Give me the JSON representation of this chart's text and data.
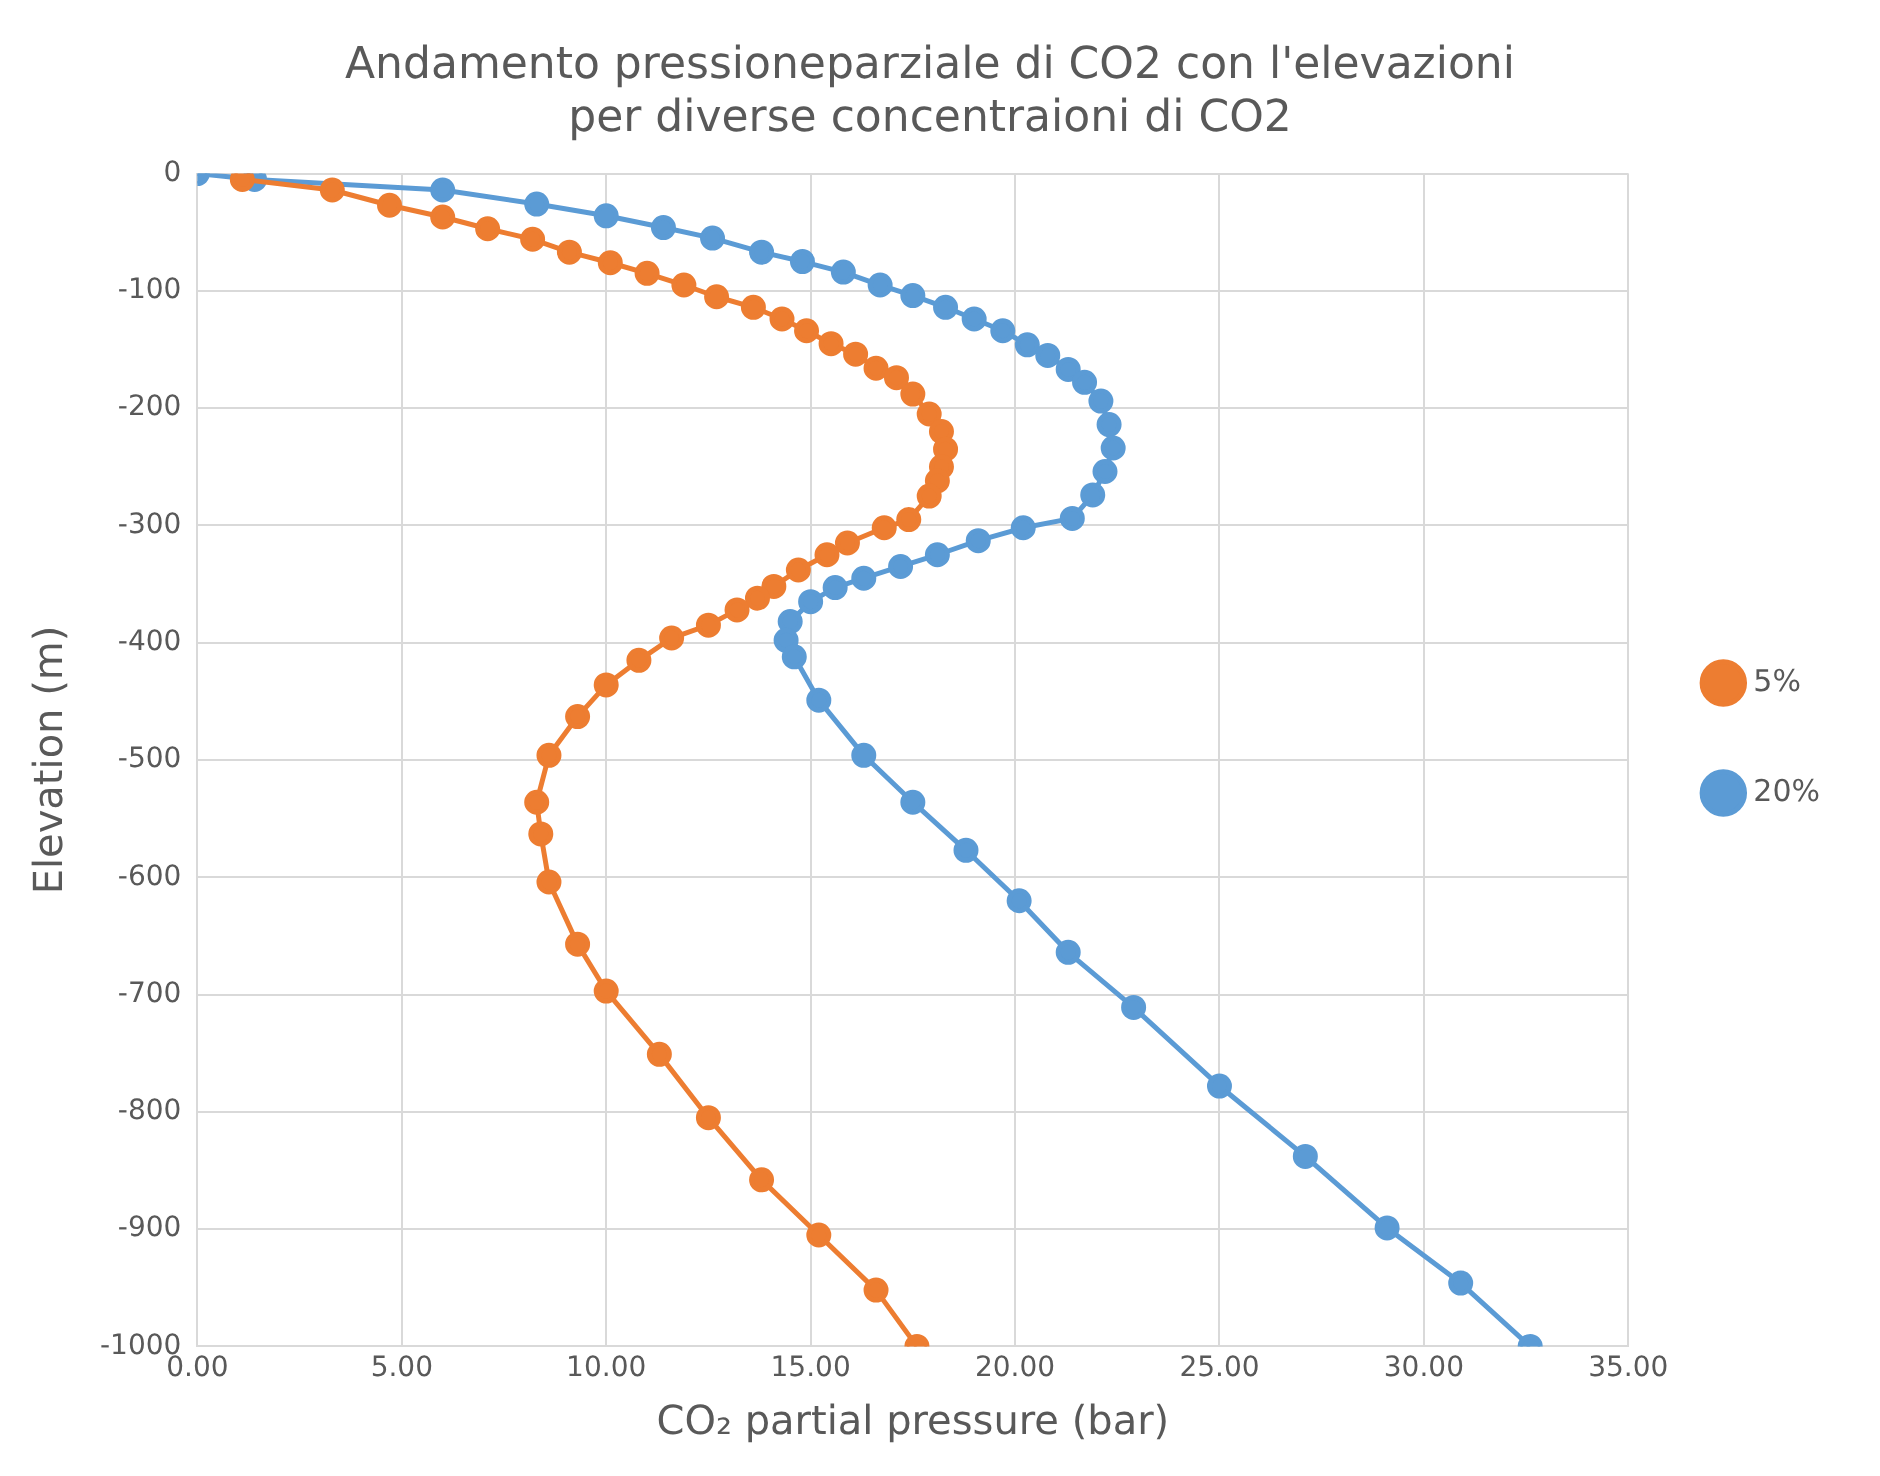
{
  "chart_data": {
    "type": "line",
    "title": "Andamento pressioneparziale di CO2 con l'elevazioni\nper diverse concentraioni di CO2",
    "xlabel": "CO₂ partial pressure (bar)",
    "ylabel": "Elevation (m)",
    "xlim": [
      0,
      35
    ],
    "xticks": [
      {
        "value": 0,
        "label": "0.00"
      },
      {
        "value": 5,
        "label": "5.00"
      },
      {
        "value": 10,
        "label": "10.00"
      },
      {
        "value": 15,
        "label": "15.00"
      },
      {
        "value": 20,
        "label": "20.00"
      },
      {
        "value": 25,
        "label": "25.00"
      },
      {
        "value": 30,
        "label": "30.00"
      },
      {
        "value": 35,
        "label": "35.00"
      }
    ],
    "ylim": [
      -1000,
      0
    ],
    "yticks": [
      0,
      -100,
      -200,
      -300,
      -400,
      -500,
      -600,
      -700,
      -800,
      -900,
      -1000
    ],
    "grid": true,
    "legend": "right",
    "marker": "circle",
    "line_style": "solid",
    "series": [
      {
        "name": "5%",
        "color": "#ed7d31",
        "x": [
          1.1,
          3.3,
          4.7,
          6.0,
          7.1,
          8.2,
          9.1,
          10.1,
          11.0,
          11.9,
          12.7,
          13.6,
          14.3,
          14.9,
          15.5,
          16.1,
          16.6,
          17.1,
          17.5,
          17.9,
          18.2,
          18.3,
          18.2,
          18.1,
          17.9,
          17.4,
          16.8,
          15.9,
          15.4,
          14.7,
          14.1,
          13.7,
          13.2,
          12.5,
          11.6,
          10.8,
          10.0,
          9.3,
          8.6,
          8.3,
          8.4,
          8.6,
          9.3,
          10.0,
          11.3,
          12.5,
          13.8,
          15.2,
          16.6,
          17.6
        ],
        "values": [
          -5,
          -14,
          -27,
          -37,
          -47,
          -56,
          -67,
          -76,
          -85,
          -95,
          -105,
          -114,
          -124,
          -134,
          -145,
          -154,
          -166,
          -174,
          -188,
          -205,
          -220,
          -235,
          -250,
          -262,
          -275,
          -295,
          -302,
          -315,
          -325,
          -338,
          -352,
          -362,
          -372,
          -385,
          -396,
          -415,
          -436,
          -463,
          -496,
          -536,
          -563,
          -604,
          -657,
          -697,
          -751,
          -805,
          -858,
          -905,
          -952,
          -1000
        ]
      },
      {
        "name": "20%",
        "color": "#5b9bd5",
        "x": [
          0,
          1.4,
          6.0,
          8.3,
          10.0,
          11.4,
          12.6,
          13.8,
          14.8,
          15.8,
          16.7,
          17.5,
          18.3,
          19.0,
          19.7,
          20.3,
          20.8,
          21.3,
          21.7,
          22.1,
          22.3,
          22.4,
          22.2,
          21.9,
          21.4,
          20.2,
          19.1,
          18.1,
          17.2,
          16.3,
          15.6,
          15.0,
          14.5,
          14.4,
          14.6,
          15.2,
          16.3,
          17.5,
          18.8,
          20.1,
          21.3,
          22.9,
          25.0,
          27.1,
          29.1,
          30.9,
          32.6
        ],
        "values": [
          0,
          -5,
          -14,
          -26,
          -36,
          -46,
          -55,
          -67,
          -75,
          -84,
          -95,
          -104,
          -114,
          -124,
          -134,
          -146,
          -155,
          -167,
          -178,
          -194,
          -214,
          -234,
          -254,
          -274,
          -294,
          -302,
          -313,
          -325,
          -335,
          -345,
          -353,
          -365,
          -382,
          -398,
          -412,
          -449,
          -496,
          -536,
          -577,
          -620,
          -664,
          -711,
          -778,
          -838,
          -899,
          -946,
          -1000
        ]
      }
    ]
  }
}
